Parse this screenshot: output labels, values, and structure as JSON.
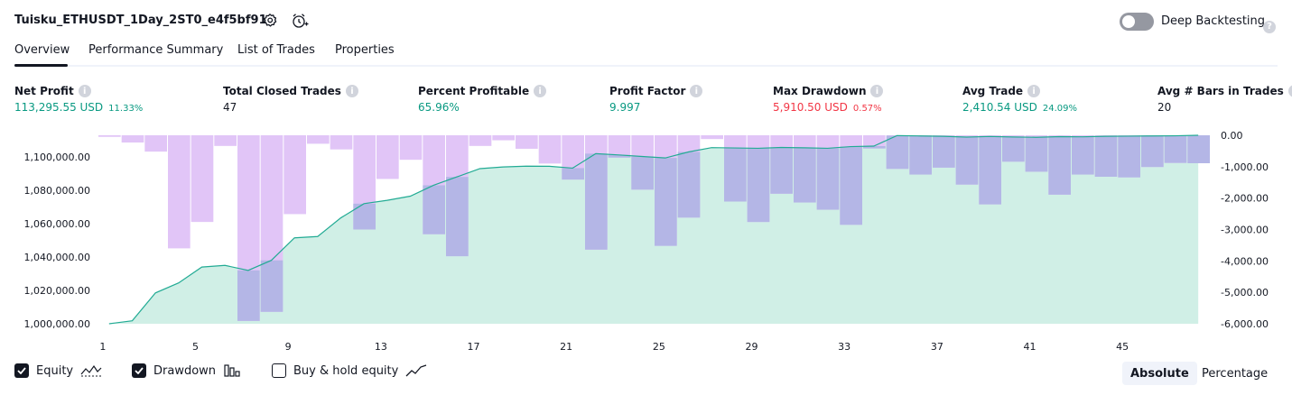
{
  "header": {
    "strategy_title": "Tuisku_ETHUSDT_1Day_2ST0_e4f5bf91",
    "settings_icon": "gear-icon",
    "alert_icon": "add-alert-clock-icon",
    "deep_backtesting_label": "Deep Backtesting",
    "deep_backtesting_enabled": false,
    "help_icon_glyph": "?"
  },
  "tabs": [
    {
      "label": "Overview",
      "active": true
    },
    {
      "label": "Performance Summary",
      "active": false
    },
    {
      "label": "List of Trades",
      "active": false
    },
    {
      "label": "Properties",
      "active": false
    }
  ],
  "stats": [
    {
      "label": "Net Profit",
      "value": "113,295.55 USD",
      "pct": "11.33%",
      "color": "#089981"
    },
    {
      "label": "Total Closed Trades",
      "value": "47",
      "pct": "",
      "color": "#131722"
    },
    {
      "label": "Percent Profitable",
      "value": "65.96%",
      "pct": "",
      "color": "#089981"
    },
    {
      "label": "Profit Factor",
      "value": "9.997",
      "pct": "",
      "color": "#089981"
    },
    {
      "label": "Max Drawdown",
      "value": "5,910.50 USD",
      "pct": "0.57%",
      "color": "#f23645"
    },
    {
      "label": "Avg Trade",
      "value": "2,410.54 USD",
      "pct": "24.09%",
      "color": "#089981"
    },
    {
      "label": "Avg # Bars in Trades",
      "value": "20",
      "pct": "",
      "color": "#131722"
    }
  ],
  "chart_data": {
    "type": "area",
    "x_ticks": [
      "1",
      "5",
      "9",
      "13",
      "17",
      "21",
      "25",
      "29",
      "33",
      "37",
      "41",
      "45"
    ],
    "left_axis_ticks": [
      "1,100,000.00",
      "1,080,000.00",
      "1,060,000.00",
      "1,040,000.00",
      "1,020,000.00",
      "1,000,000.00"
    ],
    "right_axis_ticks": [
      "0.00",
      "-1,000.00",
      "-2,000.00",
      "-3,000.00",
      "-4,000.00",
      "-5,000.00",
      "-6,000.00"
    ],
    "left_ylim": [
      1000000,
      1113000
    ],
    "right_ylim": [
      -6000,
      0
    ],
    "trades_x": [
      1,
      2,
      3,
      4,
      5,
      6,
      7,
      8,
      9,
      10,
      11,
      12,
      13,
      14,
      15,
      16,
      17,
      18,
      19,
      20,
      21,
      22,
      23,
      24,
      25,
      26,
      27,
      28,
      29,
      30,
      31,
      32,
      33,
      34,
      35,
      36,
      37,
      38,
      39,
      40,
      41,
      42,
      43,
      44,
      45,
      46,
      47,
      48
    ],
    "series": [
      {
        "name": "Equity",
        "color": "#22ab94",
        "fill": "#d0efe6",
        "values": [
          1000000,
          1001800,
          1018500,
          1024500,
          1034000,
          1035000,
          1032000,
          1038000,
          1051500,
          1052300,
          1063500,
          1072000,
          1074000,
          1076500,
          1083000,
          1088000,
          1093000,
          1094000,
          1094500,
          1094400,
          1093300,
          1102000,
          1101200,
          1100300,
          1099400,
          1103000,
          1105600,
          1105400,
          1105200,
          1105700,
          1105500,
          1105200,
          1106200,
          1106500,
          1112800,
          1112600,
          1112400,
          1111900,
          1112300,
          1112000,
          1111800,
          1112200,
          1112100,
          1112400,
          1112500,
          1112600,
          1112700,
          1113000
        ]
      },
      {
        "name": "Drawdown",
        "color": "#e1c5f7",
        "overlap_color": "#b4b6e6",
        "values": [
          -50,
          -230,
          -520,
          -3600,
          -2760,
          -340,
          -5910,
          -5620,
          -2510,
          -270,
          -450,
          -3000,
          -1390,
          -780,
          -3150,
          -3850,
          -340,
          -160,
          -430,
          -900,
          -1410,
          -3640,
          -710,
          -1730,
          -3520,
          -2620,
          -120,
          -2110,
          -2760,
          -1860,
          -2140,
          -2370,
          -2850,
          -420,
          -1070,
          -1250,
          -1030,
          -1570,
          -2200,
          -840,
          -1160,
          -1890,
          -1250,
          -1320,
          -1340,
          -1010,
          -880,
          -890
        ]
      }
    ]
  },
  "legend": [
    {
      "label": "Equity",
      "checked": true,
      "icon": "equity-wave-icon"
    },
    {
      "label": "Drawdown",
      "checked": true,
      "icon": "drawdown-bars-icon"
    },
    {
      "label": "Buy & hold equity",
      "checked": false,
      "icon": "buy-hold-line-icon"
    }
  ],
  "view_mode": {
    "options": [
      "Absolute",
      "Percentage"
    ],
    "selected": "Absolute"
  }
}
